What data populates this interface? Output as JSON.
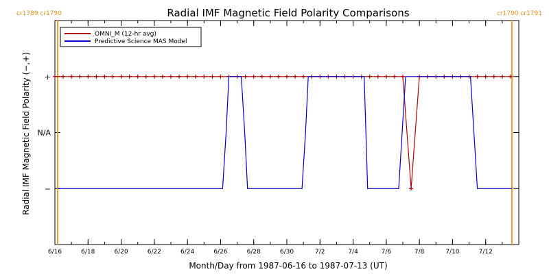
{
  "chart_data": {
    "type": "line",
    "title": "Radial IMF Magnetic Field Polarity Comparisons",
    "xlabel": "Month/Day from 1987-06-16 to 1987-07-13 (UT)",
    "ylabel": "Radial IMF Magnetic Field Polarity (−,+)",
    "x_start": "1987-06-16",
    "x_end": "1987-07-14",
    "y_categories": [
      "−",
      "N/A",
      "+"
    ],
    "y_category_values": [
      -1,
      0,
      1
    ],
    "ylim": [
      -2,
      2
    ],
    "xticks": [
      "6/16",
      "6/18",
      "6/20",
      "6/22",
      "6/24",
      "6/26",
      "6/28",
      "6/30",
      "7/2",
      "7/4",
      "7/6",
      "7/8",
      "7/10",
      "7/12"
    ],
    "xtick_dates": [
      "1987-06-16",
      "1987-06-18",
      "1987-06-20",
      "1987-06-22",
      "1987-06-24",
      "1987-06-26",
      "1987-06-28",
      "1987-06-30",
      "1987-07-02",
      "1987-07-04",
      "1987-07-06",
      "1987-07-08",
      "1987-07-10",
      "1987-07-12"
    ],
    "carrington_markers": [
      {
        "label": "cr1789 cr1790",
        "date": "1987-06-16T04:00",
        "align": "left"
      },
      {
        "label": "cr1790 cr1791",
        "date": "1987-07-13T14:00",
        "align": "right"
      }
    ],
    "legend": {
      "position": "top-left",
      "entries": [
        {
          "label": "OMNI_M (12-hr avg)",
          "color": "#b00000"
        },
        {
          "label": "Predictive Science MAS Model",
          "color": "#0000c8"
        }
      ]
    },
    "series": [
      {
        "name": "OMNI_M (12-hr avg)",
        "color": "#b00000",
        "marker": "+",
        "x": [
          "1987-06-16T00:00",
          "1987-06-16T12:00",
          "1987-06-17T00:00",
          "1987-06-17T12:00",
          "1987-06-18T00:00",
          "1987-06-18T12:00",
          "1987-06-19T00:00",
          "1987-06-19T12:00",
          "1987-06-20T00:00",
          "1987-06-20T12:00",
          "1987-06-21T00:00",
          "1987-06-21T12:00",
          "1987-06-22T00:00",
          "1987-06-22T12:00",
          "1987-06-23T00:00",
          "1987-06-23T12:00",
          "1987-06-24T00:00",
          "1987-06-24T12:00",
          "1987-06-25T00:00",
          "1987-06-25T12:00",
          "1987-06-26T00:00",
          "1987-06-26T12:00",
          "1987-06-27T00:00",
          "1987-06-27T12:00",
          "1987-06-28T00:00",
          "1987-06-28T12:00",
          "1987-06-29T00:00",
          "1987-06-29T12:00",
          "1987-06-30T00:00",
          "1987-06-30T12:00",
          "1987-07-01T00:00",
          "1987-07-01T12:00",
          "1987-07-02T00:00",
          "1987-07-02T12:00",
          "1987-07-03T00:00",
          "1987-07-03T12:00",
          "1987-07-04T00:00",
          "1987-07-04T12:00",
          "1987-07-05T00:00",
          "1987-07-05T12:00",
          "1987-07-06T00:00",
          "1987-07-06T12:00",
          "1987-07-07T00:00",
          "1987-07-07T12:00",
          "1987-07-08T00:00",
          "1987-07-08T12:00",
          "1987-07-09T00:00",
          "1987-07-09T12:00",
          "1987-07-10T00:00",
          "1987-07-10T12:00",
          "1987-07-11T00:00",
          "1987-07-11T12:00",
          "1987-07-12T00:00",
          "1987-07-12T12:00",
          "1987-07-13T00:00",
          "1987-07-13T12:00"
        ],
        "y": [
          1,
          1,
          1,
          1,
          1,
          1,
          1,
          1,
          1,
          1,
          1,
          1,
          1,
          1,
          1,
          1,
          1,
          1,
          1,
          1,
          1,
          1,
          1,
          1,
          1,
          1,
          1,
          1,
          1,
          1,
          1,
          1,
          1,
          1,
          1,
          1,
          1,
          1,
          1,
          1,
          1,
          1,
          1,
          -1,
          1,
          1,
          1,
          1,
          1,
          1,
          1,
          1,
          1,
          1,
          1,
          1
        ]
      },
      {
        "name": "Predictive Science MAS Model",
        "color": "#0000c8",
        "x": [
          "1987-06-16T04:00",
          "1987-06-26T03:00",
          "1987-06-26T08:00",
          "1987-06-26T12:00",
          "1987-06-27T06:00",
          "1987-06-27T11:00",
          "1987-06-27T15:00",
          "1987-06-30T22:00",
          "1987-07-01T03:00",
          "1987-07-01T07:00",
          "1987-07-04T16:00",
          "1987-07-04T21:00",
          "1987-07-06T18:00",
          "1987-07-06T23:00",
          "1987-07-07T04:00",
          "1987-07-11T02:00",
          "1987-07-11T07:00",
          "1987-07-11T12:00",
          "1987-07-13T14:00"
        ],
        "y": [
          -1,
          -1,
          0,
          1,
          1,
          0,
          -1,
          -1,
          0,
          1,
          1,
          -1,
          -1,
          0,
          1,
          1,
          0,
          -1,
          -1
        ]
      }
    ]
  }
}
